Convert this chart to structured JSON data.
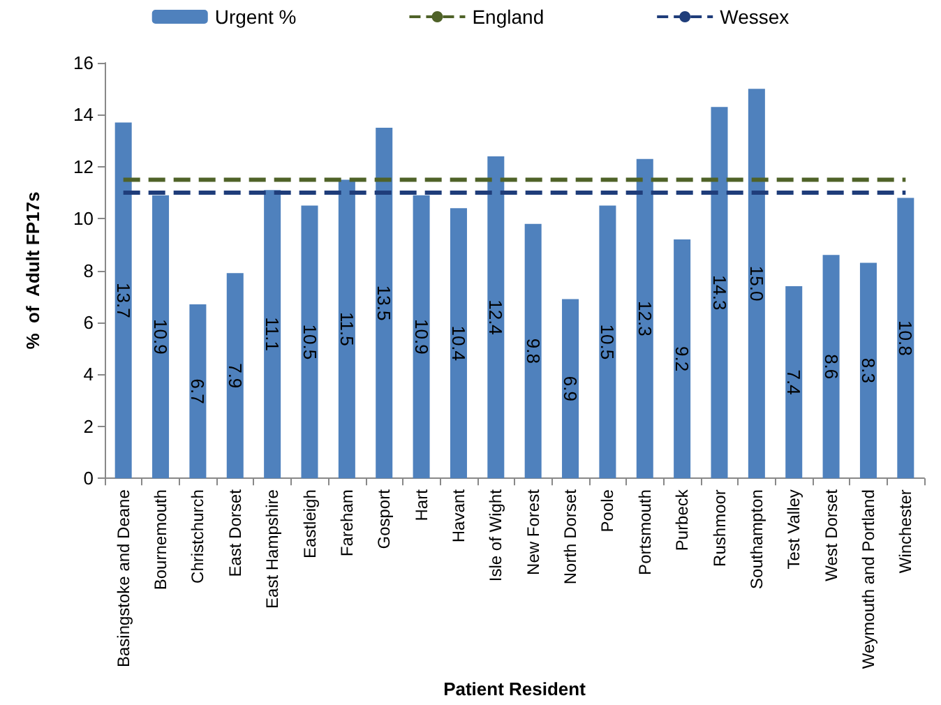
{
  "chart_data": {
    "type": "bar",
    "xlabel": "Patient Resident",
    "ylabel": "%  of  Adult FP17s",
    "categories": [
      "Basingstoke and Deane",
      "Bournemouth",
      "Christchurch",
      "East Dorset",
      "East Hampshire",
      "Eastleigh",
      "Fareham",
      "Gosport",
      "Hart",
      "Havant",
      "Isle of Wight",
      "New Forest",
      "North Dorset",
      "Poole",
      "Portsmouth",
      "Purbeck",
      "Rushmoor",
      "Southampton",
      "Test Valley",
      "West Dorset",
      "Weymouth and Portland",
      "Winchester"
    ],
    "series": [
      {
        "name": "Urgent %",
        "color": "#4f81bd",
        "values": [
          13.7,
          10.9,
          6.7,
          7.9,
          11.1,
          10.5,
          11.5,
          13.5,
          10.9,
          10.4,
          12.4,
          9.8,
          6.9,
          10.5,
          12.3,
          9.2,
          14.3,
          15.0,
          7.4,
          8.6,
          8.3,
          10.8
        ],
        "value_labels": [
          "13.7",
          "10.9",
          "6.7",
          "7.9",
          "11.1",
          "10.5",
          "11.5",
          "13.5",
          "10.9",
          "10.4",
          "12.4",
          "9.8",
          "6.9",
          "10.5",
          "12.3",
          "9.2",
          "14.3",
          "15.0",
          "7.4",
          "8.6",
          "8.3",
          "10.8"
        ]
      },
      {
        "name": "England",
        "type": "line",
        "color": "#4f6228",
        "line_style": "dashed",
        "marker": "none",
        "values": [
          11.5,
          11.5,
          11.5,
          11.5,
          11.5,
          11.5,
          11.5,
          11.5,
          11.5,
          11.5,
          11.5,
          11.5,
          11.5,
          11.5,
          11.5,
          11.5,
          11.5,
          11.5,
          11.5,
          11.5,
          11.5,
          11.5
        ]
      },
      {
        "name": "Wessex",
        "type": "line",
        "color": "#1f3d7a",
        "line_style": "dashed",
        "marker": "none",
        "values": [
          11.0,
          11.0,
          11.0,
          11.0,
          11.0,
          11.0,
          11.0,
          11.0,
          11.0,
          11.0,
          11.0,
          11.0,
          11.0,
          11.0,
          11.0,
          11.0,
          11.0,
          11.0,
          11.0,
          11.0,
          11.0,
          11.0
        ]
      }
    ],
    "ylim": [
      0,
      16
    ],
    "yticks": [
      0,
      2,
      4,
      6,
      8,
      10,
      12,
      14,
      16
    ],
    "grid": false,
    "legend": "top"
  }
}
